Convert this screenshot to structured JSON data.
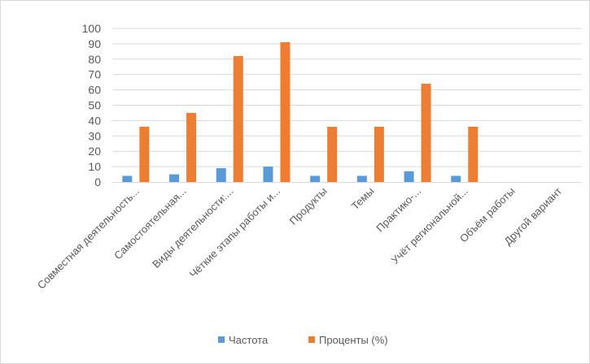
{
  "chart_data": {
    "type": "bar",
    "categories": [
      "Совместная деятельность...",
      "Самостоятельная...",
      "Виды деятельности:...",
      "Чёткие этапы работы и...",
      "Продукты",
      "Темы",
      "Практико-...",
      "Учёт региональной...",
      "Объём работы",
      "Другой вариант"
    ],
    "series": [
      {
        "name": "Частота",
        "color": "#5b9bd5",
        "values": [
          4,
          5,
          9,
          10,
          4,
          4,
          7,
          4,
          0,
          0
        ]
      },
      {
        "name": "Проценты (%)",
        "color": "#ed7d31",
        "values": [
          36,
          45,
          82,
          91,
          36,
          36,
          64,
          36,
          0,
          0
        ]
      }
    ],
    "ylim": [
      0,
      100
    ],
    "yticks": [
      0,
      10,
      20,
      30,
      40,
      50,
      60,
      70,
      80,
      90,
      100
    ],
    "grid": true,
    "legend_position": "bottom"
  }
}
